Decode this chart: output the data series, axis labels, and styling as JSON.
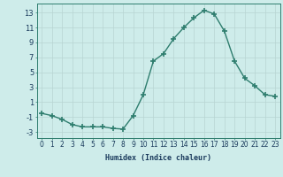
{
  "x": [
    0,
    1,
    2,
    3,
    4,
    5,
    6,
    7,
    8,
    9,
    10,
    11,
    12,
    13,
    14,
    15,
    16,
    17,
    18,
    19,
    20,
    21,
    22,
    23
  ],
  "y": [
    -0.5,
    -0.8,
    -1.3,
    -2.0,
    -2.3,
    -2.3,
    -2.3,
    -2.5,
    -2.6,
    -0.8,
    2.0,
    6.5,
    7.5,
    9.5,
    11.0,
    12.3,
    13.3,
    12.8,
    10.5,
    6.5,
    4.2,
    3.2,
    2.0,
    1.8
  ],
  "xlabel": "Humidex (Indice chaleur)",
  "xlim": [
    -0.5,
    23.5
  ],
  "ylim": [
    -3.8,
    14.2
  ],
  "yticks": [
    -3,
    -1,
    1,
    3,
    5,
    7,
    9,
    11,
    13
  ],
  "xticks": [
    0,
    1,
    2,
    3,
    4,
    5,
    6,
    7,
    8,
    9,
    10,
    11,
    12,
    13,
    14,
    15,
    16,
    17,
    18,
    19,
    20,
    21,
    22,
    23
  ],
  "xtick_labels": [
    "0",
    "1",
    "2",
    "3",
    "4",
    "5",
    "6",
    "7",
    "8",
    "9",
    "10",
    "11",
    "12",
    "13",
    "14",
    "15",
    "16",
    "17",
    "18",
    "19",
    "20",
    "21",
    "22",
    "23"
  ],
  "line_color": "#2e7d6e",
  "marker_color": "#2e7d6e",
  "bg_color": "#ceecea",
  "grid_major_color": "#b8d4d2",
  "grid_minor_color": "#d0e8e6",
  "spine_color": "#2e7d6e",
  "font_color": "#1a3a5c",
  "xlabel_fontsize": 6.0,
  "tick_fontsize": 5.5
}
